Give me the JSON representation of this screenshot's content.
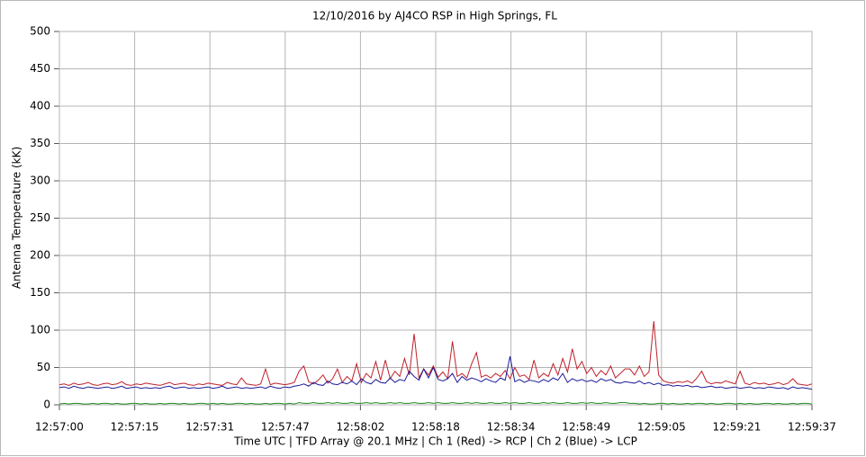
{
  "chart_data": {
    "type": "line",
    "title": "12/10/2016  by  AJ4CO RSP  in  High Springs, FL",
    "xlabel": "Time UTC    |    TFD Array @ 20.1 MHz    |    Ch 1 (Red) -> RCP    |    Ch 2 (Blue)  -> LCP",
    "ylabel": "Antenna Temperature (kK)",
    "x": [
      46620,
      46621,
      46622,
      46623,
      46624,
      46625,
      46626,
      46627,
      46628,
      46629,
      46630,
      46631,
      46632,
      46633,
      46634,
      46635,
      46636,
      46637,
      46638,
      46639,
      46640,
      46641,
      46642,
      46643,
      46644,
      46645,
      46646,
      46647,
      46648,
      46649,
      46650,
      46651,
      46652,
      46653,
      46654,
      46655,
      46656,
      46657,
      46658,
      46659,
      46660,
      46661,
      46662,
      46663,
      46664,
      46665,
      46666,
      46667,
      46668,
      46669,
      46670,
      46671,
      46672,
      46673,
      46674,
      46675,
      46676,
      46677,
      46678,
      46679,
      46680,
      46681,
      46682,
      46683,
      46684,
      46685,
      46686,
      46687,
      46688,
      46689,
      46690,
      46691,
      46692,
      46693,
      46694,
      46695,
      46696,
      46697,
      46698,
      46699,
      46700,
      46701,
      46702,
      46703,
      46704,
      46705,
      46706,
      46707,
      46708,
      46709,
      46710,
      46711,
      46712,
      46713,
      46714,
      46715,
      46716,
      46717,
      46718,
      46719,
      46720,
      46721,
      46722,
      46723,
      46724,
      46725,
      46726,
      46727,
      46728,
      46729,
      46730,
      46731,
      46732,
      46733,
      46734,
      46735,
      46736,
      46737,
      46738,
      46739,
      46740,
      46741,
      46742,
      46743,
      46744,
      46745,
      46746,
      46747,
      46748,
      46749,
      46750,
      46751,
      46752,
      46753,
      46754,
      46755,
      46756,
      46757,
      46758,
      46759,
      46760,
      46761,
      46762,
      46763,
      46764,
      46765,
      46766,
      46767,
      46768,
      46769,
      46770,
      46771,
      46772,
      46773,
      46774,
      46775,
      46776,
      46777
    ],
    "series": [
      {
        "color": "#c0202a",
        "values": [
          27,
          28,
          26,
          29,
          27,
          28,
          30,
          27,
          26,
          28,
          29,
          27,
          28,
          31,
          27,
          26,
          28,
          27,
          29,
          28,
          27,
          26,
          28,
          30,
          27,
          28,
          29,
          27,
          26,
          28,
          27,
          29,
          28,
          27,
          26,
          30,
          28,
          27,
          36,
          28,
          27,
          26,
          28,
          48,
          27,
          29,
          28,
          27,
          28,
          30,
          45,
          52,
          31,
          28,
          33,
          40,
          29,
          35,
          48,
          30,
          38,
          32,
          55,
          30,
          42,
          36,
          58,
          33,
          60,
          35,
          45,
          38,
          62,
          40,
          95,
          36,
          48,
          40,
          52,
          37,
          44,
          35,
          85,
          38,
          42,
          36,
          55,
          70,
          37,
          40,
          36,
          42,
          38,
          46,
          35,
          50,
          38,
          40,
          34,
          60,
          36,
          42,
          38,
          55,
          40,
          62,
          44,
          75,
          48,
          58,
          42,
          50,
          38,
          46,
          40,
          52,
          36,
          42,
          48,
          48,
          40,
          52,
          38,
          44,
          112,
          40,
          32,
          30,
          29,
          31,
          30,
          32,
          29,
          36,
          45,
          31,
          28,
          30,
          29,
          32,
          30,
          28,
          45,
          29,
          27,
          30,
          28,
          29,
          27,
          28,
          30,
          27,
          29,
          35,
          28,
          27,
          26,
          28
        ]
      },
      {
        "color": "#1a1a9a",
        "values": [
          23,
          24,
          22,
          25,
          23,
          22,
          24,
          23,
          22,
          23,
          24,
          22,
          23,
          25,
          22,
          23,
          24,
          22,
          23,
          22,
          23,
          22,
          24,
          25,
          22,
          23,
          24,
          22,
          23,
          22,
          23,
          24,
          22,
          23,
          25,
          22,
          23,
          24,
          22,
          23,
          22,
          23,
          24,
          22,
          25,
          23,
          22,
          24,
          23,
          25,
          26,
          28,
          25,
          30,
          27,
          26,
          32,
          28,
          27,
          30,
          28,
          32,
          27,
          35,
          30,
          28,
          34,
          30,
          29,
          36,
          30,
          34,
          32,
          45,
          38,
          33,
          48,
          36,
          50,
          34,
          32,
          35,
          42,
          30,
          38,
          33,
          36,
          34,
          31,
          35,
          32,
          30,
          36,
          33,
          65,
          31,
          34,
          30,
          33,
          32,
          30,
          34,
          31,
          36,
          33,
          42,
          30,
          35,
          32,
          34,
          31,
          33,
          30,
          35,
          32,
          34,
          30,
          29,
          31,
          30,
          29,
          32,
          28,
          30,
          27,
          29,
          26,
          27,
          25,
          26,
          25,
          26,
          24,
          25,
          23,
          24,
          25,
          23,
          24,
          22,
          23,
          24,
          22,
          23,
          24,
          22,
          23,
          22,
          24,
          23,
          22,
          23,
          21,
          24,
          22,
          23,
          22,
          21
        ]
      },
      {
        "color": "#1f8a1f",
        "values": [
          1,
          2,
          1,
          2,
          2,
          1,
          1,
          2,
          1,
          2,
          2,
          1,
          2,
          1,
          1,
          2,
          2,
          1,
          2,
          1,
          1,
          2,
          1,
          2,
          2,
          1,
          2,
          1,
          1,
          2,
          2,
          1,
          2,
          1,
          2,
          1,
          1,
          2,
          2,
          1,
          2,
          1,
          1,
          2,
          1,
          2,
          2,
          1,
          2,
          1,
          3,
          2,
          2,
          3,
          2,
          2,
          3,
          2,
          3,
          2,
          2,
          3,
          2,
          2,
          3,
          2,
          3,
          2,
          2,
          3,
          2,
          3,
          2,
          2,
          3,
          2,
          2,
          3,
          2,
          3,
          2,
          2,
          3,
          2,
          2,
          3,
          2,
          3,
          2,
          2,
          3,
          2,
          2,
          3,
          2,
          3,
          2,
          2,
          3,
          2,
          2,
          3,
          2,
          3,
          2,
          2,
          3,
          2,
          2,
          3,
          2,
          3,
          2,
          2,
          3,
          2,
          2,
          3,
          3,
          2,
          2,
          1,
          2,
          1,
          1,
          2,
          2,
          1,
          2,
          1,
          1,
          2,
          1,
          2,
          2,
          1,
          2,
          1,
          1,
          2,
          2,
          1,
          2,
          1,
          2,
          1,
          1,
          2,
          2,
          1,
          2,
          1,
          1,
          2,
          1,
          2,
          2,
          1
        ]
      }
    ],
    "xlim": [
      46620,
      46777
    ],
    "xticks": [
      {
        "value": 46620,
        "label": "12:57:00"
      },
      {
        "value": 46635.7,
        "label": "12:57:15"
      },
      {
        "value": 46651.4,
        "label": "12:57:31"
      },
      {
        "value": 46667.1,
        "label": "12:57:47"
      },
      {
        "value": 46682.8,
        "label": "12:58:02"
      },
      {
        "value": 46698.5,
        "label": "12:58:18"
      },
      {
        "value": 46714.2,
        "label": "12:58:34"
      },
      {
        "value": 46729.9,
        "label": "12:58:49"
      },
      {
        "value": 46745.6,
        "label": "12:59:05"
      },
      {
        "value": 46761.3,
        "label": "12:59:21"
      },
      {
        "value": 46777,
        "label": "12:59:37"
      }
    ],
    "ylim": [
      0,
      500
    ],
    "yticks": [
      0,
      50,
      100,
      150,
      200,
      250,
      300,
      350,
      400,
      450,
      500
    ],
    "grid": true
  }
}
